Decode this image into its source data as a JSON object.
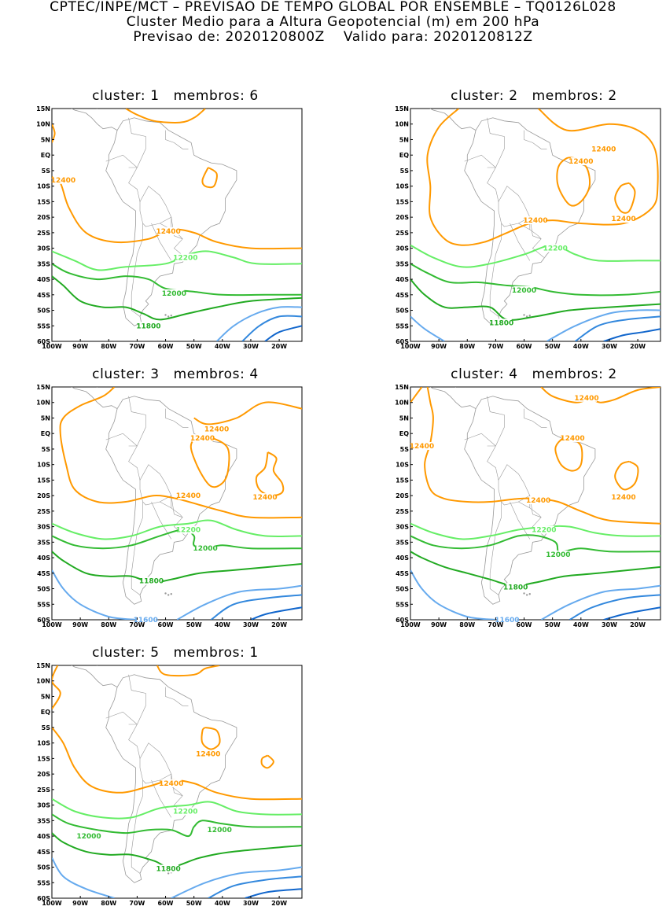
{
  "header": {
    "line1": "CPTEC/INPE/MCT – PREVISAO DE TEMPO GLOBAL POR ENSEMBLE – TQ0126L028",
    "line2": "Cluster Medio para a Altura Geopotencial (m) em 200 hPa",
    "line3": "Previsao de: 2020120800Z    Valido para: 2020120812Z"
  },
  "axes": {
    "lat_labels": [
      "15N",
      "10N",
      "5N",
      "EQ",
      "5S",
      "10S",
      "15S",
      "20S",
      "25S",
      "30S",
      "35S",
      "40S",
      "45S",
      "50S",
      "55S",
      "60S"
    ],
    "lon_labels": [
      "100W",
      "90W",
      "80W",
      "70W",
      "60W",
      "50W",
      "40W",
      "30W",
      "20W"
    ]
  },
  "colors": {
    "c12400": "#ff9900",
    "c12200": "#66ee66",
    "c12000": "#33bb33",
    "c11800": "#22aa22",
    "c11600": "#66aaee",
    "c11400": "#3388dd",
    "c11200": "#1166cc",
    "coast": "#999999"
  },
  "panels": [
    {
      "title": "cluster: 1   membros: 6",
      "labels": [
        "12400",
        "12400",
        "12200",
        "12000",
        "11800"
      ]
    },
    {
      "title": "cluster: 2   membros: 2",
      "labels": [
        "12400",
        "12400",
        "12400",
        "12400",
        "12200",
        "12000",
        "11800"
      ]
    },
    {
      "title": "cluster: 3   membros: 4",
      "labels": [
        "12400",
        "12400",
        "12400",
        "12400",
        "12200",
        "12000",
        "11800",
        "11600"
      ]
    },
    {
      "title": "cluster: 4   membros: 2",
      "labels": [
        "12400",
        "12400",
        "12400",
        "12400",
        "12400",
        "12200",
        "12000",
        "11800",
        "11600"
      ]
    },
    {
      "title": "cluster: 5   membros: 1",
      "labels": [
        "12400",
        "12400",
        "12200",
        "12000",
        "12000",
        "11800"
      ]
    }
  ]
}
